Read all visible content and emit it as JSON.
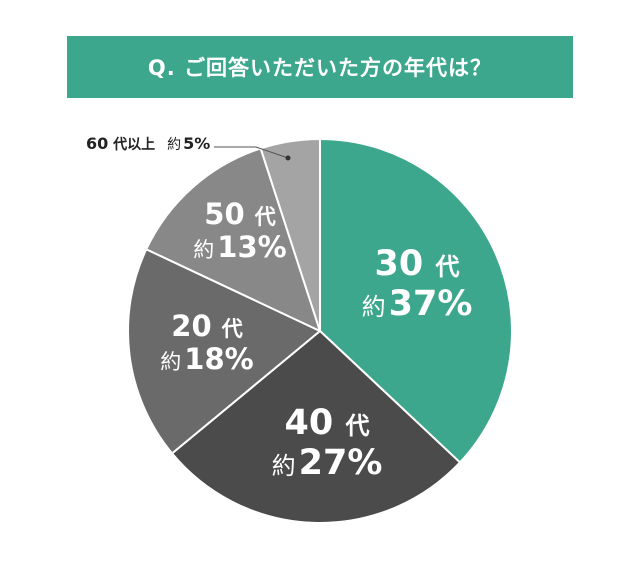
{
  "header": {
    "title": "Q. ご回答いただいた方の年代は？"
  },
  "colors": {
    "banner": "#3ca78c",
    "30s": "#3ca78c",
    "40s": "#4b4b4b",
    "20s": "#6a6a6a",
    "50s": "#888888",
    "60plus": "#a4a4a4"
  },
  "labels": {
    "s30": {
      "num": "30",
      "kanji": "代",
      "prefix": "約",
      "pct": "37%"
    },
    "s40": {
      "num": "40",
      "kanji": "代",
      "prefix": "約",
      "pct": "27%"
    },
    "s20": {
      "num": "20",
      "kanji": "代",
      "prefix": "約",
      "pct": "18%"
    },
    "s50": {
      "num": "50",
      "kanji": "代",
      "prefix": "約",
      "pct": "13%"
    },
    "s60": {
      "num": "60",
      "kanji": "代以上",
      "prefix": "約",
      "pct": "5%"
    }
  },
  "chart_data": {
    "type": "pie",
    "title": "Q. ご回答いただいた方の年代は？",
    "categories": [
      "30代",
      "40代",
      "20代",
      "50代",
      "60代以上"
    ],
    "values": [
      37,
      27,
      18,
      13,
      5
    ],
    "value_prefix": "約",
    "unit": "%",
    "start_angle": "12 o'clock, clockwise",
    "colors": [
      "#3ca78c",
      "#4b4b4b",
      "#6a6a6a",
      "#888888",
      "#a4a4a4"
    ],
    "legend": "none (direct labels; 60代以上 via callout line)"
  }
}
